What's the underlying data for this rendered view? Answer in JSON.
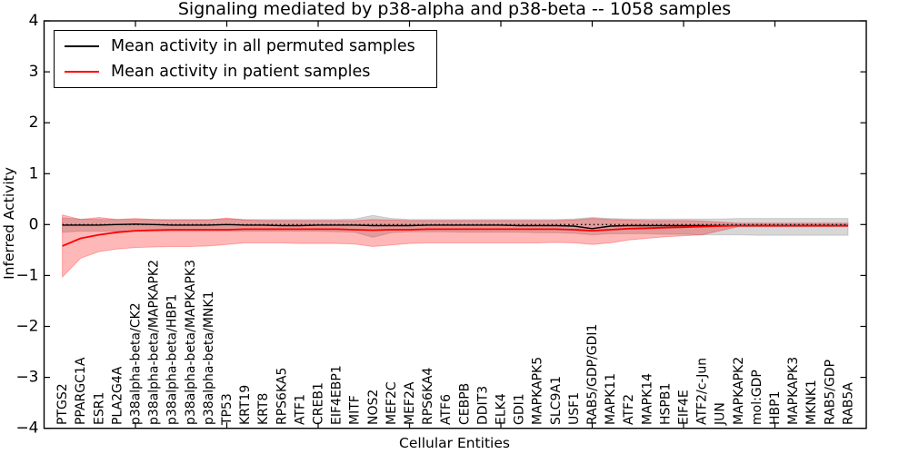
{
  "title": "Signaling mediated by p38-alpha and p38-beta -- 1058 samples",
  "legend": {
    "position": "upper left",
    "items": [
      {
        "label": "Mean activity in all permuted samples",
        "color": "#000000"
      },
      {
        "label": "Mean activity in patient samples",
        "color": "#ff0000"
      }
    ]
  },
  "colors": {
    "permuted_line": "#000000",
    "patient_line": "#ff0000",
    "permuted_band": "rgba(130,130,130,0.32)",
    "patient_band": "rgba(255,0,0,0.28)"
  },
  "chart_data": {
    "type": "line",
    "title": "Signaling mediated by p38-alpha and p38-beta -- 1058 samples",
    "xlabel": "Cellular Entities",
    "ylabel": "Inferred Activity",
    "ylim": [
      -4,
      4
    ],
    "yticks": [
      4,
      3,
      2,
      1,
      0,
      -1,
      -2,
      -3,
      -4
    ],
    "grid": false,
    "legend_position": "upper left",
    "zero_reference_line": true,
    "categories": [
      "PTGS2",
      "PPARGC1A",
      "ESR1",
      "PLA2G4A",
      "p38alpha-beta/CK2",
      "p38alpha-beta/MAPKAPK2",
      "p38alpha-beta/HBP1",
      "p38alpha-beta/MAPKAPK3",
      "p38alpha-beta/MNK1",
      "TP53",
      "KRT19",
      "KRT8",
      "RPS6KA5",
      "ATF1",
      "CREB1",
      "EIF4EBP1",
      "MITF",
      "NOS2",
      "MEF2C",
      "MEF2A",
      "RPS6KA4",
      "ATF6",
      "CEBPB",
      "DDIT3",
      "ELK4",
      "GDI1",
      "MAPKAPK5",
      "SLC9A1",
      "USF1",
      "RAB5/GDP/GDI1",
      "MAPK11",
      "ATF2",
      "MAPK14",
      "HSPB1",
      "EIF4E",
      "ATF2/c-Jun",
      "JUN",
      "MAPKAPK2",
      "mol:GDP",
      "HBP1",
      "MAPKAPK3",
      "MKNK1",
      "RAB5/GDP",
      "RAB5A"
    ],
    "series": [
      {
        "name": "Mean activity in all permuted samples",
        "color": "#000000",
        "values": [
          -0.01,
          -0.01,
          -0.01,
          0.0,
          0.01,
          0.0,
          -0.01,
          -0.01,
          -0.01,
          0.0,
          -0.01,
          -0.01,
          -0.02,
          -0.02,
          -0.01,
          -0.01,
          -0.01,
          -0.02,
          -0.02,
          -0.02,
          -0.01,
          -0.01,
          -0.01,
          -0.01,
          -0.01,
          -0.02,
          -0.02,
          -0.02,
          -0.03,
          -0.08,
          -0.03,
          -0.02,
          -0.02,
          -0.02,
          -0.02,
          -0.02,
          -0.02,
          -0.02,
          -0.02,
          -0.02,
          -0.02,
          -0.02,
          -0.02,
          -0.02
        ]
      },
      {
        "name": "Mean activity in patient samples",
        "color": "#ff0000",
        "values": [
          -0.42,
          -0.27,
          -0.2,
          -0.15,
          -0.12,
          -0.11,
          -0.1,
          -0.1,
          -0.1,
          -0.1,
          -0.09,
          -0.09,
          -0.09,
          -0.09,
          -0.09,
          -0.09,
          -0.1,
          -0.11,
          -0.1,
          -0.1,
          -0.09,
          -0.09,
          -0.09,
          -0.09,
          -0.09,
          -0.09,
          -0.09,
          -0.09,
          -0.1,
          -0.12,
          -0.1,
          -0.08,
          -0.07,
          -0.06,
          -0.05,
          -0.04,
          -0.03,
          -0.02,
          -0.02,
          -0.02,
          -0.02,
          -0.02,
          -0.02,
          -0.02
        ]
      }
    ],
    "bands": [
      {
        "name": "permuted-samples-range",
        "color": "rgba(130,130,130,0.32)",
        "upper": [
          0.13,
          0.11,
          0.1,
          0.1,
          0.1,
          0.1,
          0.1,
          0.1,
          0.1,
          0.11,
          0.1,
          0.1,
          0.1,
          0.1,
          0.1,
          0.1,
          0.11,
          0.18,
          0.12,
          0.1,
          0.1,
          0.1,
          0.1,
          0.1,
          0.1,
          0.1,
          0.1,
          0.1,
          0.11,
          0.14,
          0.12,
          0.11,
          0.11,
          0.11,
          0.11,
          0.11,
          0.11,
          0.12,
          0.12,
          0.12,
          0.12,
          0.12,
          0.12,
          0.12
        ],
        "lower": [
          -0.15,
          -0.13,
          -0.13,
          -0.13,
          -0.13,
          -0.13,
          -0.13,
          -0.13,
          -0.13,
          -0.13,
          -0.13,
          -0.13,
          -0.13,
          -0.13,
          -0.13,
          -0.14,
          -0.15,
          -0.25,
          -0.16,
          -0.14,
          -0.14,
          -0.14,
          -0.15,
          -0.15,
          -0.15,
          -0.15,
          -0.16,
          -0.16,
          -0.17,
          -0.2,
          -0.18,
          -0.18,
          -0.18,
          -0.19,
          -0.19,
          -0.2,
          -0.2,
          -0.2,
          -0.21,
          -0.21,
          -0.21,
          -0.21,
          -0.21,
          -0.21
        ]
      },
      {
        "name": "patient-samples-range",
        "color": "rgba(255,0,0,0.28)",
        "upper": [
          0.19,
          0.1,
          0.14,
          0.1,
          0.12,
          0.1,
          0.09,
          0.09,
          0.09,
          0.13,
          0.09,
          0.08,
          0.08,
          0.08,
          0.08,
          0.08,
          0.08,
          0.1,
          0.09,
          0.08,
          0.08,
          0.08,
          0.08,
          0.08,
          0.08,
          0.08,
          0.08,
          0.08,
          0.09,
          0.12,
          0.1,
          0.09,
          0.08,
          0.08,
          0.08,
          0.07,
          0.05,
          0.03,
          0.03,
          0.03,
          0.03,
          0.03,
          0.03,
          0.03
        ],
        "lower": [
          -1.03,
          -0.66,
          -0.53,
          -0.48,
          -0.45,
          -0.44,
          -0.43,
          -0.43,
          -0.42,
          -0.39,
          -0.36,
          -0.36,
          -0.36,
          -0.37,
          -0.37,
          -0.37,
          -0.38,
          -0.43,
          -0.4,
          -0.37,
          -0.36,
          -0.36,
          -0.36,
          -0.36,
          -0.36,
          -0.36,
          -0.36,
          -0.35,
          -0.36,
          -0.39,
          -0.36,
          -0.3,
          -0.27,
          -0.24,
          -0.22,
          -0.2,
          -0.12,
          -0.04,
          -0.04,
          -0.04,
          -0.04,
          -0.04,
          -0.04,
          -0.04
        ]
      }
    ]
  }
}
